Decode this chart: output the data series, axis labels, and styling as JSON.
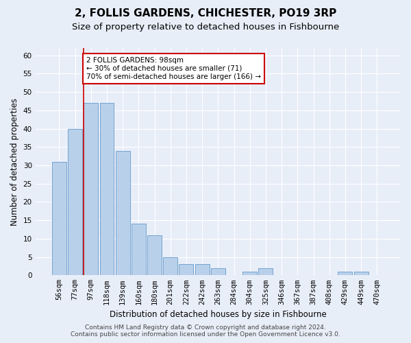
{
  "title": "2, FOLLIS GARDENS, CHICHESTER, PO19 3RP",
  "subtitle": "Size of property relative to detached houses in Fishbourne",
  "xlabel": "Distribution of detached houses by size in Fishbourne",
  "ylabel": "Number of detached properties",
  "categories": [
    "56sqm",
    "77sqm",
    "97sqm",
    "118sqm",
    "139sqm",
    "160sqm",
    "180sqm",
    "201sqm",
    "222sqm",
    "242sqm",
    "263sqm",
    "284sqm",
    "304sqm",
    "325sqm",
    "346sqm",
    "367sqm",
    "387sqm",
    "408sqm",
    "429sqm",
    "449sqm",
    "470sqm"
  ],
  "values": [
    31,
    40,
    47,
    47,
    34,
    14,
    11,
    5,
    3,
    3,
    2,
    0,
    1,
    2,
    0,
    0,
    0,
    0,
    1,
    1,
    0
  ],
  "bar_color": "#b8d0ea",
  "bar_edge_color": "#6699cc",
  "annotation_text": "2 FOLLIS GARDENS: 98sqm\n← 30% of detached houses are smaller (71)\n70% of semi-detached houses are larger (166) →",
  "annotation_box_color": "#ffffff",
  "annotation_box_edge": "#cc0000",
  "vline_color": "#cc0000",
  "footer_line1": "Contains HM Land Registry data © Crown copyright and database right 2024.",
  "footer_line2": "Contains public sector information licensed under the Open Government Licence v3.0.",
  "bg_color": "#e8eef8",
  "plot_bg_color": "#e8eef8",
  "ylim": [
    0,
    62
  ],
  "yticks": [
    0,
    5,
    10,
    15,
    20,
    25,
    30,
    35,
    40,
    45,
    50,
    55,
    60
  ],
  "title_fontsize": 11,
  "subtitle_fontsize": 9.5,
  "label_fontsize": 8.5,
  "tick_fontsize": 7.5,
  "footer_fontsize": 6.5
}
